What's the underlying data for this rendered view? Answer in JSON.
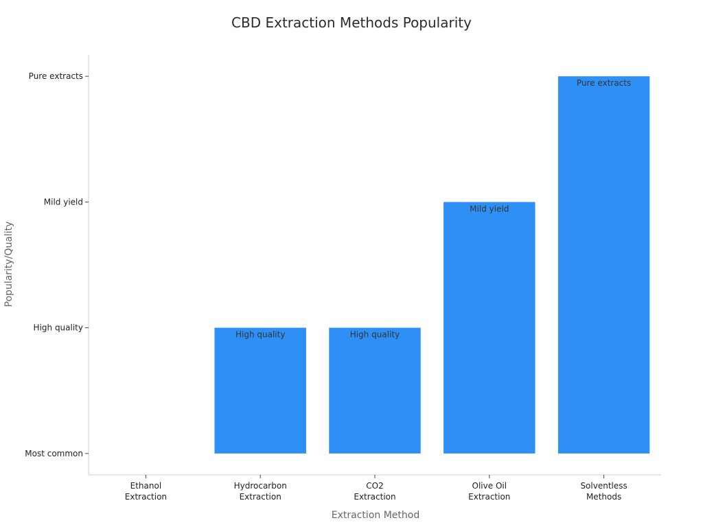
{
  "chart_data": {
    "type": "bar",
    "title": "CBD Extraction Methods Popularity",
    "xlabel": "Extraction Method",
    "ylabel": "Popularity/Quality",
    "categories": [
      [
        "Ethanol",
        "Extraction"
      ],
      [
        "Hydrocarbon",
        "Extraction"
      ],
      [
        "CO2",
        "Extraction"
      ],
      [
        "Olive Oil",
        "Extraction"
      ],
      [
        "Solventless",
        "Methods"
      ]
    ],
    "y_ticks": [
      "Most common",
      "High quality",
      "Mild yield",
      "Pure extracts"
    ],
    "values": [
      0,
      1,
      1,
      2,
      3
    ],
    "data_labels": [
      "",
      "High quality",
      "High quality",
      "Mild yield",
      "Pure extracts"
    ],
    "ylim": [
      -0.17,
      3.17
    ],
    "grid": false,
    "colors": {
      "bar": "#2e90f5",
      "axis": "#cccccc",
      "text": "#222222"
    }
  }
}
